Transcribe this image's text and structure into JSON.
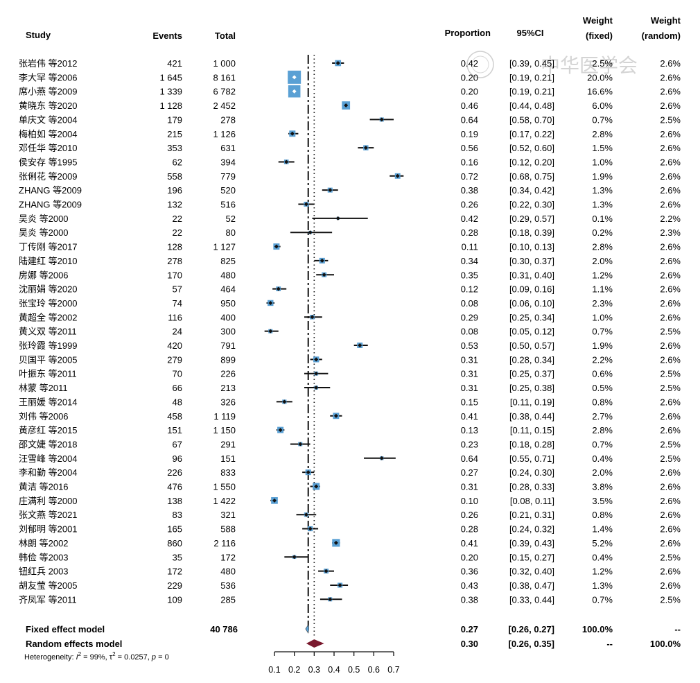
{
  "headers": {
    "study": "Study",
    "events": "Events",
    "total": "Total",
    "proportion": "Proportion",
    "ci": "95%CI",
    "weight_fixed_1": "Weight",
    "weight_fixed_2": "(fixed)",
    "weight_random_1": "Weight",
    "weight_random_2": "(random)"
  },
  "watermark": "中华医学会",
  "chart_data": {
    "type": "forest",
    "xlim": [
      0.1,
      0.7
    ],
    "ticks": [
      "0.1",
      "0.2",
      "0.3",
      "0.4",
      "0.5",
      "0.6",
      "0.7"
    ],
    "tick_values": [
      0.1,
      0.2,
      0.3,
      0.4,
      0.5,
      0.6,
      0.7
    ],
    "fixed_line": 0.27,
    "random_line": 0.3,
    "studies": [
      {
        "study": "张岩伟 等2012",
        "events": "421",
        "total": "1 000",
        "prop": 0.42,
        "lo": 0.39,
        "hi": 0.45,
        "prop_label": "0.42",
        "ci_label": "[0.39, 0.45]",
        "w_fixed": "2.5%",
        "w_random": "2.6%",
        "wf": 2.5
      },
      {
        "study": "李大罕 等2006",
        "events": "1 645",
        "total": "8 161",
        "prop": 0.2,
        "lo": 0.19,
        "hi": 0.21,
        "prop_label": "0.20",
        "ci_label": "[0.19, 0.21]",
        "w_fixed": "20.0%",
        "w_random": "2.6%",
        "wf": 20.0
      },
      {
        "study": "席小燕 等2009",
        "events": "1 339",
        "total": "6 782",
        "prop": 0.2,
        "lo": 0.19,
        "hi": 0.21,
        "prop_label": "0.20",
        "ci_label": "[0.19, 0.21]",
        "w_fixed": "16.6%",
        "w_random": "2.6%",
        "wf": 16.6
      },
      {
        "study": "黄晓东 等2020",
        "events": "1 128",
        "total": "2 452",
        "prop": 0.46,
        "lo": 0.44,
        "hi": 0.48,
        "prop_label": "0.46",
        "ci_label": "[0.44, 0.48]",
        "w_fixed": "6.0%",
        "w_random": "2.6%",
        "wf": 6.0
      },
      {
        "study": "单庆文 等2004",
        "events": "179",
        "total": "278",
        "prop": 0.64,
        "lo": 0.58,
        "hi": 0.7,
        "prop_label": "0.64",
        "ci_label": "[0.58, 0.70]",
        "w_fixed": "0.7%",
        "w_random": "2.5%",
        "wf": 0.7
      },
      {
        "study": "梅柏如 等2004",
        "events": "215",
        "total": "1 126",
        "prop": 0.19,
        "lo": 0.17,
        "hi": 0.22,
        "prop_label": "0.19",
        "ci_label": "[0.17, 0.22]",
        "w_fixed": "2.8%",
        "w_random": "2.6%",
        "wf": 2.8
      },
      {
        "study": "邓任华 等2010",
        "events": "353",
        "total": "631",
        "prop": 0.56,
        "lo": 0.52,
        "hi": 0.6,
        "prop_label": "0.56",
        "ci_label": "[0.52, 0.60]",
        "w_fixed": "1.5%",
        "w_random": "2.6%",
        "wf": 1.5
      },
      {
        "study": "侯安存 等1995",
        "events": "62",
        "total": "394",
        "prop": 0.16,
        "lo": 0.12,
        "hi": 0.2,
        "prop_label": "0.16",
        "ci_label": "[0.12, 0.20]",
        "w_fixed": "1.0%",
        "w_random": "2.6%",
        "wf": 1.0
      },
      {
        "study": "张俐花 等2009",
        "events": "558",
        "total": "779",
        "prop": 0.72,
        "lo": 0.68,
        "hi": 0.75,
        "prop_label": "0.72",
        "ci_label": "[0.68, 0.75]",
        "w_fixed": "1.9%",
        "w_random": "2.6%",
        "wf": 1.9
      },
      {
        "study": "ZHANG 等2009",
        "events": "196",
        "total": "520",
        "prop": 0.38,
        "lo": 0.34,
        "hi": 0.42,
        "prop_label": "0.38",
        "ci_label": "[0.34, 0.42]",
        "w_fixed": "1.3%",
        "w_random": "2.6%",
        "wf": 1.3
      },
      {
        "study": "ZHANG 等2009",
        "events": "132",
        "total": "516",
        "prop": 0.26,
        "lo": 0.22,
        "hi": 0.3,
        "prop_label": "0.26",
        "ci_label": "[0.22, 0.30]",
        "w_fixed": "1.3%",
        "w_random": "2.6%",
        "wf": 1.3
      },
      {
        "study": "吴炎 等2000",
        "events": "22",
        "total": "52",
        "prop": 0.42,
        "lo": 0.29,
        "hi": 0.57,
        "prop_label": "0.42",
        "ci_label": "[0.29, 0.57]",
        "w_fixed": "0.1%",
        "w_random": "2.2%",
        "wf": 0.1
      },
      {
        "study": "吴炎 等2000",
        "events": "22",
        "total": "80",
        "prop": 0.28,
        "lo": 0.18,
        "hi": 0.39,
        "prop_label": "0.28",
        "ci_label": "[0.18, 0.39]",
        "w_fixed": "0.2%",
        "w_random": "2.3%",
        "wf": 0.2
      },
      {
        "study": "丁传刚 等2017",
        "events": "128",
        "total": "1 127",
        "prop": 0.11,
        "lo": 0.1,
        "hi": 0.13,
        "prop_label": "0.11",
        "ci_label": "[0.10, 0.13]",
        "w_fixed": "2.8%",
        "w_random": "2.6%",
        "wf": 2.8
      },
      {
        "study": "陆建红 等2010",
        "events": "278",
        "total": "825",
        "prop": 0.34,
        "lo": 0.3,
        "hi": 0.37,
        "prop_label": "0.34",
        "ci_label": "[0.30, 0.37]",
        "w_fixed": "2.0%",
        "w_random": "2.6%",
        "wf": 2.0
      },
      {
        "study": "房娜 等2006",
        "events": "170",
        "total": "480",
        "prop": 0.35,
        "lo": 0.31,
        "hi": 0.4,
        "prop_label": "0.35",
        "ci_label": "[0.31, 0.40]",
        "w_fixed": "1.2%",
        "w_random": "2.6%",
        "wf": 1.2
      },
      {
        "study": "沈丽娟 等2020",
        "events": "57",
        "total": "464",
        "prop": 0.12,
        "lo": 0.09,
        "hi": 0.16,
        "prop_label": "0.12",
        "ci_label": "[0.09, 0.16]",
        "w_fixed": "1.1%",
        "w_random": "2.6%",
        "wf": 1.1
      },
      {
        "study": "张宝玲 等2000",
        "events": "74",
        "total": "950",
        "prop": 0.08,
        "lo": 0.06,
        "hi": 0.1,
        "prop_label": "0.08",
        "ci_label": "[0.06, 0.10]",
        "w_fixed": "2.3%",
        "w_random": "2.6%",
        "wf": 2.3
      },
      {
        "study": "黄超全 等2002",
        "events": "116",
        "total": "400",
        "prop": 0.29,
        "lo": 0.25,
        "hi": 0.34,
        "prop_label": "0.29",
        "ci_label": "[0.25, 0.34]",
        "w_fixed": "1.0%",
        "w_random": "2.6%",
        "wf": 1.0
      },
      {
        "study": "黄义双 等2011",
        "events": "24",
        "total": "300",
        "prop": 0.08,
        "lo": 0.05,
        "hi": 0.12,
        "prop_label": "0.08",
        "ci_label": "[0.05, 0.12]",
        "w_fixed": "0.7%",
        "w_random": "2.5%",
        "wf": 0.7
      },
      {
        "study": "张玲霞 等1999",
        "events": "420",
        "total": "791",
        "prop": 0.53,
        "lo": 0.5,
        "hi": 0.57,
        "prop_label": "0.53",
        "ci_label": "[0.50, 0.57]",
        "w_fixed": "1.9%",
        "w_random": "2.6%",
        "wf": 1.9
      },
      {
        "study": "贝国平 等2005",
        "events": "279",
        "total": "899",
        "prop": 0.31,
        "lo": 0.28,
        "hi": 0.34,
        "prop_label": "0.31",
        "ci_label": "[0.28, 0.34]",
        "w_fixed": "2.2%",
        "w_random": "2.6%",
        "wf": 2.2
      },
      {
        "study": "叶振东 等2011",
        "events": "70",
        "total": "226",
        "prop": 0.31,
        "lo": 0.25,
        "hi": 0.37,
        "prop_label": "0.31",
        "ci_label": "[0.25, 0.37]",
        "w_fixed": "0.6%",
        "w_random": "2.5%",
        "wf": 0.6
      },
      {
        "study": "林蒙 等2011",
        "events": "66",
        "total": "213",
        "prop": 0.31,
        "lo": 0.25,
        "hi": 0.38,
        "prop_label": "0.31",
        "ci_label": "[0.25, 0.38]",
        "w_fixed": "0.5%",
        "w_random": "2.5%",
        "wf": 0.5
      },
      {
        "study": "王丽媛 等2014",
        "events": "48",
        "total": "326",
        "prop": 0.15,
        "lo": 0.11,
        "hi": 0.19,
        "prop_label": "0.15",
        "ci_label": "[0.11, 0.19]",
        "w_fixed": "0.8%",
        "w_random": "2.6%",
        "wf": 0.8
      },
      {
        "study": "刘伟 等2006",
        "events": "458",
        "total": "1 119",
        "prop": 0.41,
        "lo": 0.38,
        "hi": 0.44,
        "prop_label": "0.41",
        "ci_label": "[0.38, 0.44]",
        "w_fixed": "2.7%",
        "w_random": "2.6%",
        "wf": 2.7
      },
      {
        "study": "黄彦红 等2015",
        "events": "151",
        "total": "1 150",
        "prop": 0.13,
        "lo": 0.11,
        "hi": 0.15,
        "prop_label": "0.13",
        "ci_label": "[0.11, 0.15]",
        "w_fixed": "2.8%",
        "w_random": "2.6%",
        "wf": 2.8
      },
      {
        "study": "邵文婕 等2018",
        "events": "67",
        "total": "291",
        "prop": 0.23,
        "lo": 0.18,
        "hi": 0.28,
        "prop_label": "0.23",
        "ci_label": "[0.18, 0.28]",
        "w_fixed": "0.7%",
        "w_random": "2.5%",
        "wf": 0.7
      },
      {
        "study": "汪雪峰 等2004",
        "events": "96",
        "total": "151",
        "prop": 0.64,
        "lo": 0.55,
        "hi": 0.71,
        "prop_label": "0.64",
        "ci_label": "[0.55, 0.71]",
        "w_fixed": "0.4%",
        "w_random": "2.5%",
        "wf": 0.4
      },
      {
        "study": "李和勤 等2004",
        "events": "226",
        "total": "833",
        "prop": 0.27,
        "lo": 0.24,
        "hi": 0.3,
        "prop_label": "0.27",
        "ci_label": "[0.24, 0.30]",
        "w_fixed": "2.0%",
        "w_random": "2.6%",
        "wf": 2.0
      },
      {
        "study": "黄洁 等2016",
        "events": "476",
        "total": "1 550",
        "prop": 0.31,
        "lo": 0.28,
        "hi": 0.33,
        "prop_label": "0.31",
        "ci_label": "[0.28, 0.33]",
        "w_fixed": "3.8%",
        "w_random": "2.6%",
        "wf": 3.8
      },
      {
        "study": "庄满利 等2000",
        "events": "138",
        "total": "1 422",
        "prop": 0.1,
        "lo": 0.08,
        "hi": 0.11,
        "prop_label": "0.10",
        "ci_label": "[0.08, 0.11]",
        "w_fixed": "3.5%",
        "w_random": "2.6%",
        "wf": 3.5
      },
      {
        "study": "张文燕 等2021",
        "events": "83",
        "total": "321",
        "prop": 0.26,
        "lo": 0.21,
        "hi": 0.31,
        "prop_label": "0.26",
        "ci_label": "[0.21, 0.31]",
        "w_fixed": "0.8%",
        "w_random": "2.6%",
        "wf": 0.8
      },
      {
        "study": "刘郁明 等2001",
        "events": "165",
        "total": "588",
        "prop": 0.28,
        "lo": 0.24,
        "hi": 0.32,
        "prop_label": "0.28",
        "ci_label": "[0.24, 0.32]",
        "w_fixed": "1.4%",
        "w_random": "2.6%",
        "wf": 1.4
      },
      {
        "study": "林朗 等2002",
        "events": "860",
        "total": "2 116",
        "prop": 0.41,
        "lo": 0.39,
        "hi": 0.43,
        "prop_label": "0.41",
        "ci_label": "[0.39, 0.43]",
        "w_fixed": "5.2%",
        "w_random": "2.6%",
        "wf": 5.2
      },
      {
        "study": "韩俭 等2003",
        "events": "35",
        "total": "172",
        "prop": 0.2,
        "lo": 0.15,
        "hi": 0.27,
        "prop_label": "0.20",
        "ci_label": "[0.15, 0.27]",
        "w_fixed": "0.4%",
        "w_random": "2.5%",
        "wf": 0.4
      },
      {
        "study": "钮红兵 2003",
        "events": "172",
        "total": "480",
        "prop": 0.36,
        "lo": 0.32,
        "hi": 0.4,
        "prop_label": "0.36",
        "ci_label": "[0.32, 0.40]",
        "w_fixed": "1.2%",
        "w_random": "2.6%",
        "wf": 1.2
      },
      {
        "study": "胡友莹 等2005",
        "events": "229",
        "total": "536",
        "prop": 0.43,
        "lo": 0.38,
        "hi": 0.47,
        "prop_label": "0.43",
        "ci_label": "[0.38, 0.47]",
        "w_fixed": "1.3%",
        "w_random": "2.6%",
        "wf": 1.3
      },
      {
        "study": "齐凤军 等2011",
        "events": "109",
        "total": "285",
        "prop": 0.38,
        "lo": 0.33,
        "hi": 0.44,
        "prop_label": "0.38",
        "ci_label": "[0.33, 0.44]",
        "w_fixed": "0.7%",
        "w_random": "2.5%",
        "wf": 0.7
      }
    ],
    "summary": {
      "fixed": {
        "label": "Fixed effect model",
        "total": "40 786",
        "est": 0.27,
        "lo": 0.26,
        "hi": 0.27,
        "prop_label": "0.27",
        "ci_label": "[0.26, 0.27]",
        "w_fixed": "100.0%",
        "w_random": "--"
      },
      "random": {
        "label": "Random effects model",
        "est": 0.3,
        "lo": 0.26,
        "hi": 0.35,
        "prop_label": "0.30",
        "ci_label": "[0.26, 0.35]",
        "w_fixed": "--",
        "w_random": "100.0%"
      }
    },
    "heterogeneity": {
      "prefix": "Heterogeneity: ",
      "i2": "99%",
      "tau2": "0.0257",
      "p": "0"
    },
    "colors": {
      "square": "#5aa0d4",
      "line": "#111111",
      "random_diamond": "#7a1a2e",
      "fixed_diamond": "#5aa0d4"
    }
  }
}
